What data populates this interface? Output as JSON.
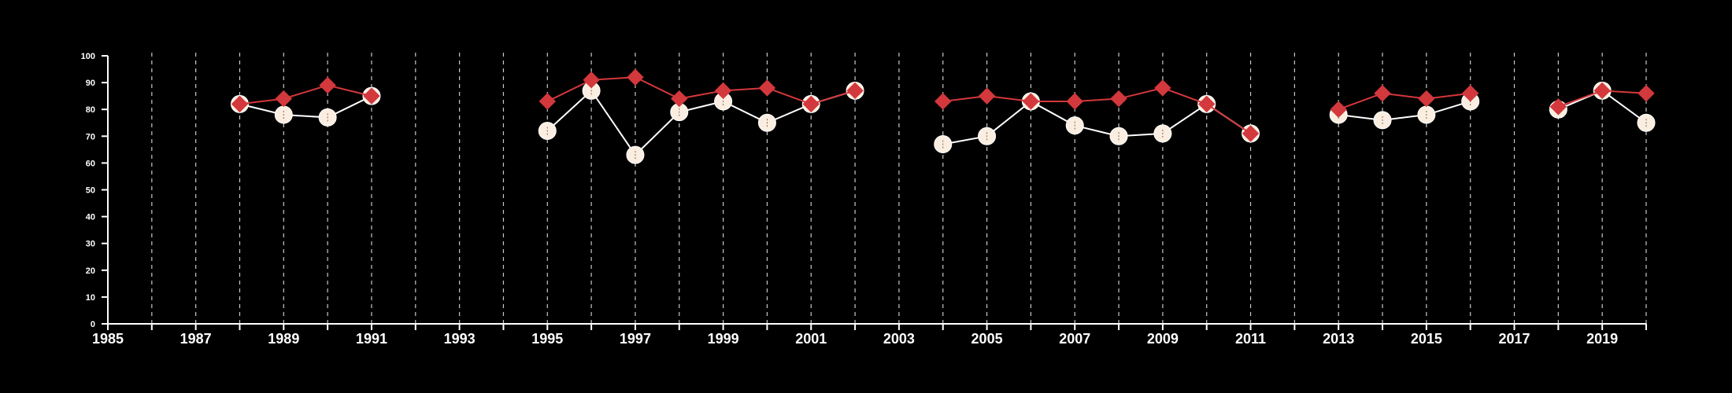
{
  "chart_data": {
    "type": "line",
    "title": "",
    "xlabel": "",
    "ylabel": "",
    "xlim": [
      1985,
      2020
    ],
    "ylim": [
      0,
      100
    ],
    "y_ticks": [
      0,
      10,
      20,
      30,
      40,
      50,
      60,
      70,
      80,
      90,
      100
    ],
    "x_tick_labels": [
      1985,
      1987,
      1989,
      1991,
      1993,
      1995,
      1997,
      1999,
      2001,
      2003,
      2005,
      2007,
      2009,
      2011,
      2013,
      2015,
      2017,
      2019
    ],
    "x_minor_ticks_every": 1,
    "vertical_grid": "dashed, every year",
    "legend": "none",
    "background": "#000000",
    "series": [
      {
        "marker": "circle",
        "color": "#ffffff",
        "marker_fill": "#fbeee0",
        "points": [
          [
            [
              1988,
              82
            ],
            [
              1989,
              78
            ],
            [
              1990,
              77
            ],
            [
              1991,
              85
            ]
          ],
          [
            [
              1995,
              72
            ],
            [
              1996,
              87
            ],
            [
              1997,
              63
            ],
            [
              1998,
              79
            ],
            [
              1999,
              83
            ],
            [
              2000,
              75
            ],
            [
              2001,
              82
            ],
            [
              2002,
              87
            ]
          ],
          [
            [
              2004,
              67
            ],
            [
              2005,
              70
            ],
            [
              2006,
              83
            ],
            [
              2007,
              74
            ],
            [
              2008,
              70
            ],
            [
              2009,
              71
            ],
            [
              2010,
              82
            ],
            [
              2011,
              71
            ]
          ],
          [
            [
              2013,
              78
            ],
            [
              2014,
              76
            ],
            [
              2015,
              78
            ],
            [
              2016,
              83
            ]
          ],
          [
            [
              2018,
              80
            ],
            [
              2019,
              87
            ],
            [
              2020,
              75
            ]
          ]
        ]
      },
      {
        "marker": "diamond",
        "color": "#d3383c",
        "marker_fill": "#d3383c",
        "points": [
          [
            [
              1988,
              82
            ],
            [
              1989,
              84
            ],
            [
              1990,
              89
            ],
            [
              1991,
              85
            ]
          ],
          [
            [
              1995,
              83
            ],
            [
              1996,
              91
            ],
            [
              1997,
              92
            ],
            [
              1998,
              84
            ],
            [
              1999,
              87
            ],
            [
              2000,
              88
            ],
            [
              2001,
              82
            ],
            [
              2002,
              87
            ]
          ],
          [
            [
              2004,
              83
            ],
            [
              2005,
              85
            ],
            [
              2006,
              83
            ],
            [
              2007,
              83
            ],
            [
              2008,
              84
            ],
            [
              2009,
              88
            ],
            [
              2010,
              82
            ],
            [
              2011,
              71
            ]
          ],
          [
            [
              2013,
              80
            ],
            [
              2014,
              86
            ],
            [
              2015,
              84
            ],
            [
              2016,
              86
            ]
          ],
          [
            [
              2018,
              81
            ],
            [
              2019,
              87
            ],
            [
              2020,
              86
            ]
          ]
        ]
      }
    ]
  }
}
